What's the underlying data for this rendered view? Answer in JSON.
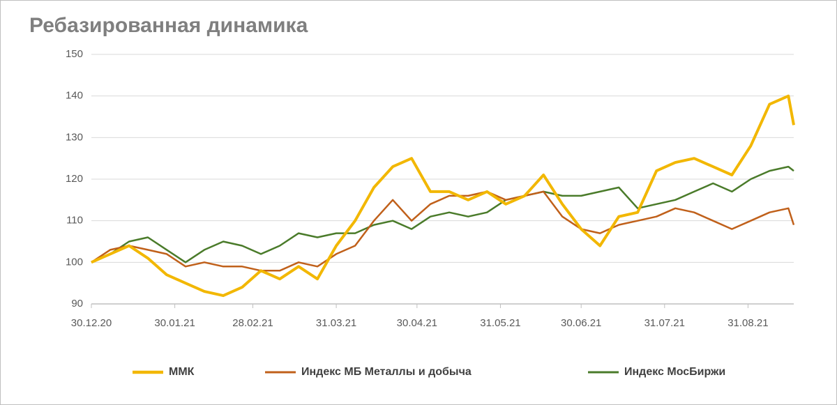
{
  "chart_data": {
    "type": "line",
    "title": "Ребазированная динамика",
    "x": [
      "2020-12-30",
      "2021-01-06",
      "2021-01-13",
      "2021-01-20",
      "2021-01-27",
      "2021-02-03",
      "2021-02-10",
      "2021-02-17",
      "2021-02-24",
      "2021-03-03",
      "2021-03-10",
      "2021-03-17",
      "2021-03-24",
      "2021-03-31",
      "2021-04-07",
      "2021-04-14",
      "2021-04-21",
      "2021-04-28",
      "2021-05-05",
      "2021-05-12",
      "2021-05-19",
      "2021-05-26",
      "2021-06-02",
      "2021-06-09",
      "2021-06-16",
      "2021-06-23",
      "2021-06-30",
      "2021-07-07",
      "2021-07-14",
      "2021-07-21",
      "2021-07-28",
      "2021-08-04",
      "2021-08-11",
      "2021-08-18",
      "2021-08-25",
      "2021-09-01",
      "2021-09-08",
      "2021-09-15",
      "2021-09-17"
    ],
    "series": [
      {
        "name": "ММК",
        "color": "#f2b700",
        "width": 4,
        "values": [
          100,
          102,
          104,
          101,
          97,
          95,
          93,
          92,
          94,
          98,
          96,
          99,
          96,
          104,
          110,
          118,
          123,
          125,
          117,
          117,
          115,
          117,
          114,
          116,
          121,
          114,
          108,
          104,
          111,
          112,
          122,
          124,
          125,
          123,
          121,
          128,
          138,
          140,
          133
        ]
      },
      {
        "name": "Индекс МБ Металлы и добыча",
        "color": "#c0601a",
        "width": 2.5,
        "values": [
          100,
          103,
          104,
          103,
          102,
          99,
          100,
          99,
          99,
          98,
          98,
          100,
          99,
          102,
          104,
          110,
          115,
          110,
          114,
          116,
          116,
          117,
          115,
          116,
          117,
          111,
          108,
          107,
          109,
          110,
          111,
          113,
          112,
          110,
          108,
          110,
          112,
          113,
          109
        ]
      },
      {
        "name": "Индекс МосБиржи",
        "color": "#4a7b2a",
        "width": 2.5,
        "values": [
          100,
          102,
          105,
          106,
          103,
          100,
          103,
          105,
          104,
          102,
          104,
          107,
          106,
          107,
          107,
          109,
          110,
          108,
          111,
          112,
          111,
          112,
          115,
          116,
          117,
          116,
          116,
          117,
          118,
          113,
          114,
          115,
          117,
          119,
          117,
          120,
          122,
          123,
          122
        ]
      }
    ],
    "xlim": [
      "2020-12-30",
      "2021-09-17"
    ],
    "xticks": [
      {
        "value": "2020-12-30",
        "label": "30.12.20"
      },
      {
        "value": "2021-01-30",
        "label": "30.01.21"
      },
      {
        "value": "2021-02-28",
        "label": "28.02.21"
      },
      {
        "value": "2021-03-31",
        "label": "31.03.21"
      },
      {
        "value": "2021-04-30",
        "label": "30.04.21"
      },
      {
        "value": "2021-05-31",
        "label": "31.05.21"
      },
      {
        "value": "2021-06-30",
        "label": "30.06.21"
      },
      {
        "value": "2021-07-31",
        "label": "31.07.21"
      },
      {
        "value": "2021-08-31",
        "label": "31.08.21"
      }
    ],
    "ylim": [
      90,
      150
    ],
    "yticks": [
      90,
      100,
      110,
      120,
      130,
      140,
      150
    ],
    "grid": true,
    "legend": "bottom"
  }
}
